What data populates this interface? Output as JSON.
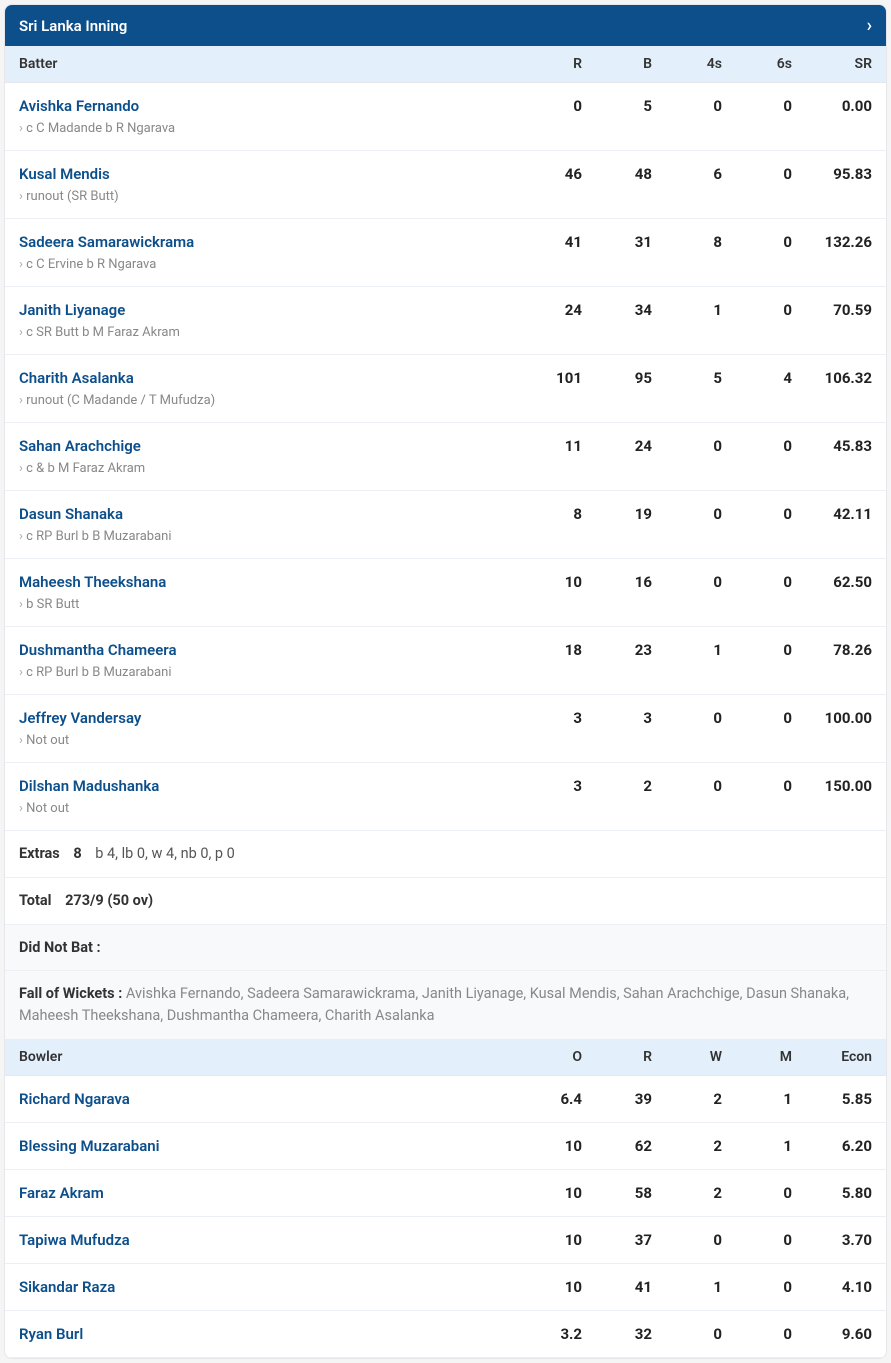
{
  "header": {
    "title": "Sri Lanka Inning"
  },
  "batting": {
    "columns": {
      "name": "Batter",
      "r": "R",
      "b": "B",
      "fours": "4s",
      "sixes": "6s",
      "sr": "SR"
    },
    "rows": [
      {
        "name": "Avishka Fernando",
        "dismissal": "c C Madande b R Ngarava",
        "r": "0",
        "b": "5",
        "fours": "0",
        "sixes": "0",
        "sr": "0.00"
      },
      {
        "name": "Kusal Mendis",
        "dismissal": "runout (SR Butt)",
        "r": "46",
        "b": "48",
        "fours": "6",
        "sixes": "0",
        "sr": "95.83"
      },
      {
        "name": "Sadeera Samarawickrama",
        "dismissal": "c C Ervine b R Ngarava",
        "r": "41",
        "b": "31",
        "fours": "8",
        "sixes": "0",
        "sr": "132.26"
      },
      {
        "name": "Janith Liyanage",
        "dismissal": "c SR Butt b M Faraz Akram",
        "r": "24",
        "b": "34",
        "fours": "1",
        "sixes": "0",
        "sr": "70.59"
      },
      {
        "name": "Charith Asalanka",
        "dismissal": "runout (C Madande / T Mufudza)",
        "r": "101",
        "b": "95",
        "fours": "5",
        "sixes": "4",
        "sr": "106.32"
      },
      {
        "name": "Sahan Arachchige",
        "dismissal": "c & b M Faraz Akram",
        "r": "11",
        "b": "24",
        "fours": "0",
        "sixes": "0",
        "sr": "45.83"
      },
      {
        "name": "Dasun Shanaka",
        "dismissal": "c RP Burl b B Muzarabani",
        "r": "8",
        "b": "19",
        "fours": "0",
        "sixes": "0",
        "sr": "42.11"
      },
      {
        "name": "Maheesh Theekshana",
        "dismissal": "b SR Butt",
        "r": "10",
        "b": "16",
        "fours": "0",
        "sixes": "0",
        "sr": "62.50"
      },
      {
        "name": "Dushmantha Chameera",
        "dismissal": "c RP Burl b B Muzarabani",
        "r": "18",
        "b": "23",
        "fours": "1",
        "sixes": "0",
        "sr": "78.26"
      },
      {
        "name": "Jeffrey Vandersay",
        "dismissal": "Not out",
        "r": "3",
        "b": "3",
        "fours": "0",
        "sixes": "0",
        "sr": "100.00"
      },
      {
        "name": "Dilshan Madushanka",
        "dismissal": "Not out",
        "r": "3",
        "b": "2",
        "fours": "0",
        "sixes": "0",
        "sr": "150.00"
      }
    ]
  },
  "extras": {
    "label": "Extras",
    "value": "8",
    "detail": "b 4, lb 0, w 4, nb 0, p 0"
  },
  "total": {
    "label": "Total",
    "value": "273/9 (50 ov)"
  },
  "dnb": {
    "label": "Did Not Bat :"
  },
  "fow": {
    "label": "Fall of Wickets : ",
    "text": "Avishka Fernando, Sadeera Samarawickrama, Janith Liyanage, Kusal Mendis, Sahan Arachchige, Dasun Shanaka, Maheesh Theekshana, Dushmantha Chameera, Charith Asalanka"
  },
  "bowling": {
    "columns": {
      "name": "Bowler",
      "o": "O",
      "r": "R",
      "w": "W",
      "m": "M",
      "econ": "Econ"
    },
    "rows": [
      {
        "name": "Richard Ngarava",
        "o": "6.4",
        "r": "39",
        "w": "2",
        "m": "1",
        "econ": "5.85"
      },
      {
        "name": "Blessing Muzarabani",
        "o": "10",
        "r": "62",
        "w": "2",
        "m": "1",
        "econ": "6.20"
      },
      {
        "name": "Faraz Akram",
        "o": "10",
        "r": "58",
        "w": "2",
        "m": "0",
        "econ": "5.80"
      },
      {
        "name": "Tapiwa Mufudza",
        "o": "10",
        "r": "37",
        "w": "0",
        "m": "0",
        "econ": "3.70"
      },
      {
        "name": "Sikandar Raza",
        "o": "10",
        "r": "41",
        "w": "1",
        "m": "0",
        "econ": "4.10"
      },
      {
        "name": "Ryan Burl",
        "o": "3.2",
        "r": "32",
        "w": "0",
        "m": "0",
        "econ": "9.60"
      }
    ]
  },
  "colors": {
    "header_bg": "#0d4f8b",
    "subheader_bg": "#e3f0fb",
    "link_color": "#0d4f8b",
    "border_color": "#eceff3",
    "muted_text": "#888"
  }
}
